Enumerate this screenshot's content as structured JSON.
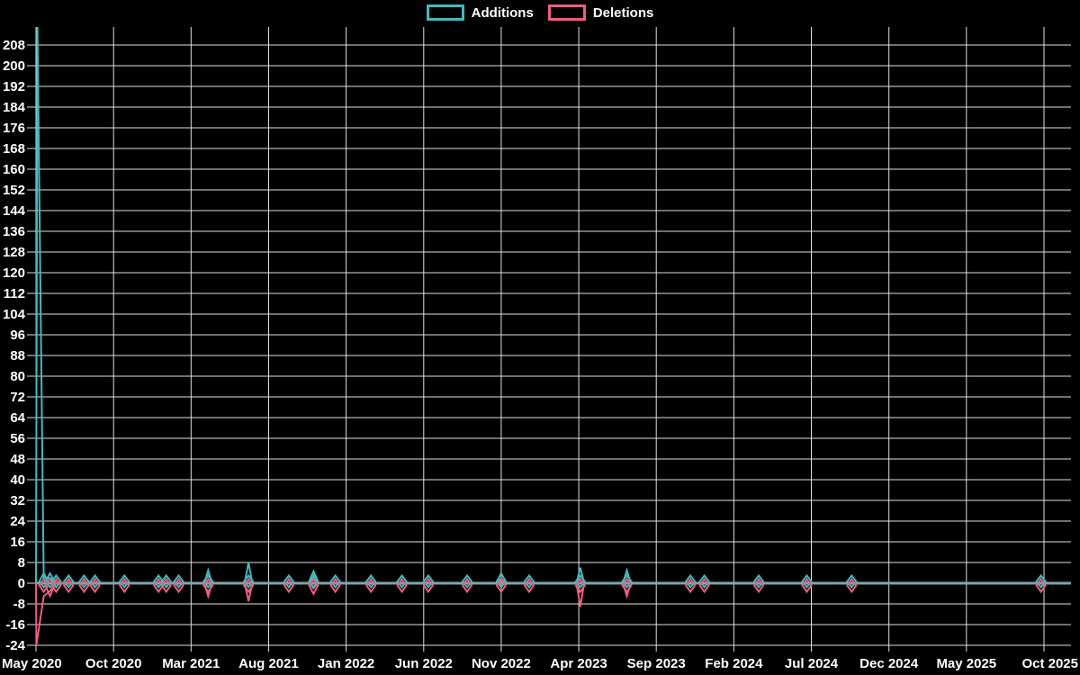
{
  "legend": {
    "additions_label": "Additions",
    "deletions_label": "Deletions"
  },
  "colors": {
    "background": "#000000",
    "additions": "#45b8bd",
    "deletions": "#ec5f7e",
    "grid": "#e0e0e0",
    "text": "#ffffff",
    "zero_line": "#7aa9ac"
  },
  "chart_data": {
    "type": "line",
    "title": "",
    "legend": [
      "Additions",
      "Deletions"
    ],
    "legend_position": "top-center",
    "grid": true,
    "background": "#000000",
    "x_axis": {
      "tick_labels": [
        "May 2020",
        "Oct 2020",
        "Mar 2021",
        "Aug 2021",
        "Jan 2022",
        "Jun 2022",
        "Nov 2022",
        "Apr 2023",
        "Sep 2023",
        "Feb 2024",
        "Jul 2024",
        "Dec 2024",
        "May 2025",
        "Oct 2025"
      ],
      "start_month": "2020-05",
      "end_month": "2025-10",
      "tick_interval_months": 5
    },
    "y_axis": {
      "min_label": -24,
      "max_label": 208,
      "step": 8,
      "plot_min": -24,
      "plot_max": 216
    },
    "y_tick_labels": [
      208,
      200,
      192,
      184,
      176,
      168,
      160,
      152,
      144,
      136,
      128,
      120,
      112,
      104,
      96,
      88,
      80,
      72,
      64,
      56,
      48,
      40,
      32,
      24,
      16,
      8,
      0,
      -8,
      -16,
      -24
    ],
    "series": [
      {
        "name": "Additions",
        "key": "additions",
        "color": "#45b8bd",
        "marker": "diamond-outline"
      },
      {
        "name": "Deletions",
        "key": "deletions",
        "color": "#ec5f7e",
        "marker": "diamond-outline"
      }
    ],
    "points": [
      {
        "date": "2020-05-10",
        "month_offset": 0.15,
        "additions": 215,
        "deletions": -24
      },
      {
        "date": "2020-05-20",
        "month_offset": 0.5,
        "additions": 2,
        "deletions": -5
      },
      {
        "date": "2020-06-01",
        "month_offset": 0.9,
        "additions": 2,
        "deletions": -3
      },
      {
        "date": "2020-06-12",
        "month_offset": 1.3,
        "additions": 1,
        "deletions": -1
      },
      {
        "date": "2020-07-06",
        "month_offset": 2.1,
        "additions": 1,
        "deletions": -1
      },
      {
        "date": "2020-08-05",
        "month_offset": 3.1,
        "additions": 1,
        "deletions": -1
      },
      {
        "date": "2020-08-26",
        "month_offset": 3.8,
        "additions": 1,
        "deletions": -1
      },
      {
        "date": "2020-10-22",
        "month_offset": 5.7,
        "additions": 1,
        "deletions": -1
      },
      {
        "date": "2020-12-27",
        "month_offset": 7.9,
        "additions": 1,
        "deletions": -1
      },
      {
        "date": "2021-01-11",
        "month_offset": 8.4,
        "additions": 1,
        "deletions": -1
      },
      {
        "date": "2021-02-04",
        "month_offset": 9.2,
        "additions": 1,
        "deletions": -1
      },
      {
        "date": "2021-04-03",
        "month_offset": 11.1,
        "additions": 5,
        "deletions": -5
      },
      {
        "date": "2021-06-21",
        "month_offset": 13.7,
        "additions": 8,
        "deletions": -7
      },
      {
        "date": "2021-09-08",
        "month_offset": 16.3,
        "additions": 1,
        "deletions": -1
      },
      {
        "date": "2021-10-26",
        "month_offset": 17.9,
        "additions": 3,
        "deletions": -2
      },
      {
        "date": "2021-12-07",
        "month_offset": 19.3,
        "additions": 1,
        "deletions": -1
      },
      {
        "date": "2022-02-14",
        "month_offset": 21.6,
        "additions": 1,
        "deletions": -1
      },
      {
        "date": "2022-04-15",
        "month_offset": 23.6,
        "additions": 1,
        "deletions": -1
      },
      {
        "date": "2022-06-05",
        "month_offset": 25.3,
        "additions": 1,
        "deletions": -1
      },
      {
        "date": "2022-08-19",
        "month_offset": 27.8,
        "additions": 1,
        "deletions": -1
      },
      {
        "date": "2022-11-01",
        "month_offset": 30,
        "additions": 2,
        "deletions": -1
      },
      {
        "date": "2022-12-25",
        "month_offset": 31.8,
        "additions": 1,
        "deletions": -1
      },
      {
        "date": "2023-04-03",
        "month_offset": 35.1,
        "additions": 6,
        "deletions": -9
      },
      {
        "date": "2023-07-03",
        "month_offset": 38.1,
        "additions": 5,
        "deletions": -5
      },
      {
        "date": "2023-11-05",
        "month_offset": 42.2,
        "additions": 1,
        "deletions": -1
      },
      {
        "date": "2023-12-03",
        "month_offset": 43.1,
        "additions": 1,
        "deletions": -1
      },
      {
        "date": "2024-03-20",
        "month_offset": 46.6,
        "additions": 1,
        "deletions": -1
      },
      {
        "date": "2024-06-20",
        "month_offset": 49.7,
        "additions": 1,
        "deletions": -1
      },
      {
        "date": "2024-09-17",
        "month_offset": 52.6,
        "additions": 1,
        "deletions": -1
      },
      {
        "date": "2025-09-24",
        "month_offset": 64.8,
        "additions": 1,
        "deletions": -1
      }
    ]
  }
}
